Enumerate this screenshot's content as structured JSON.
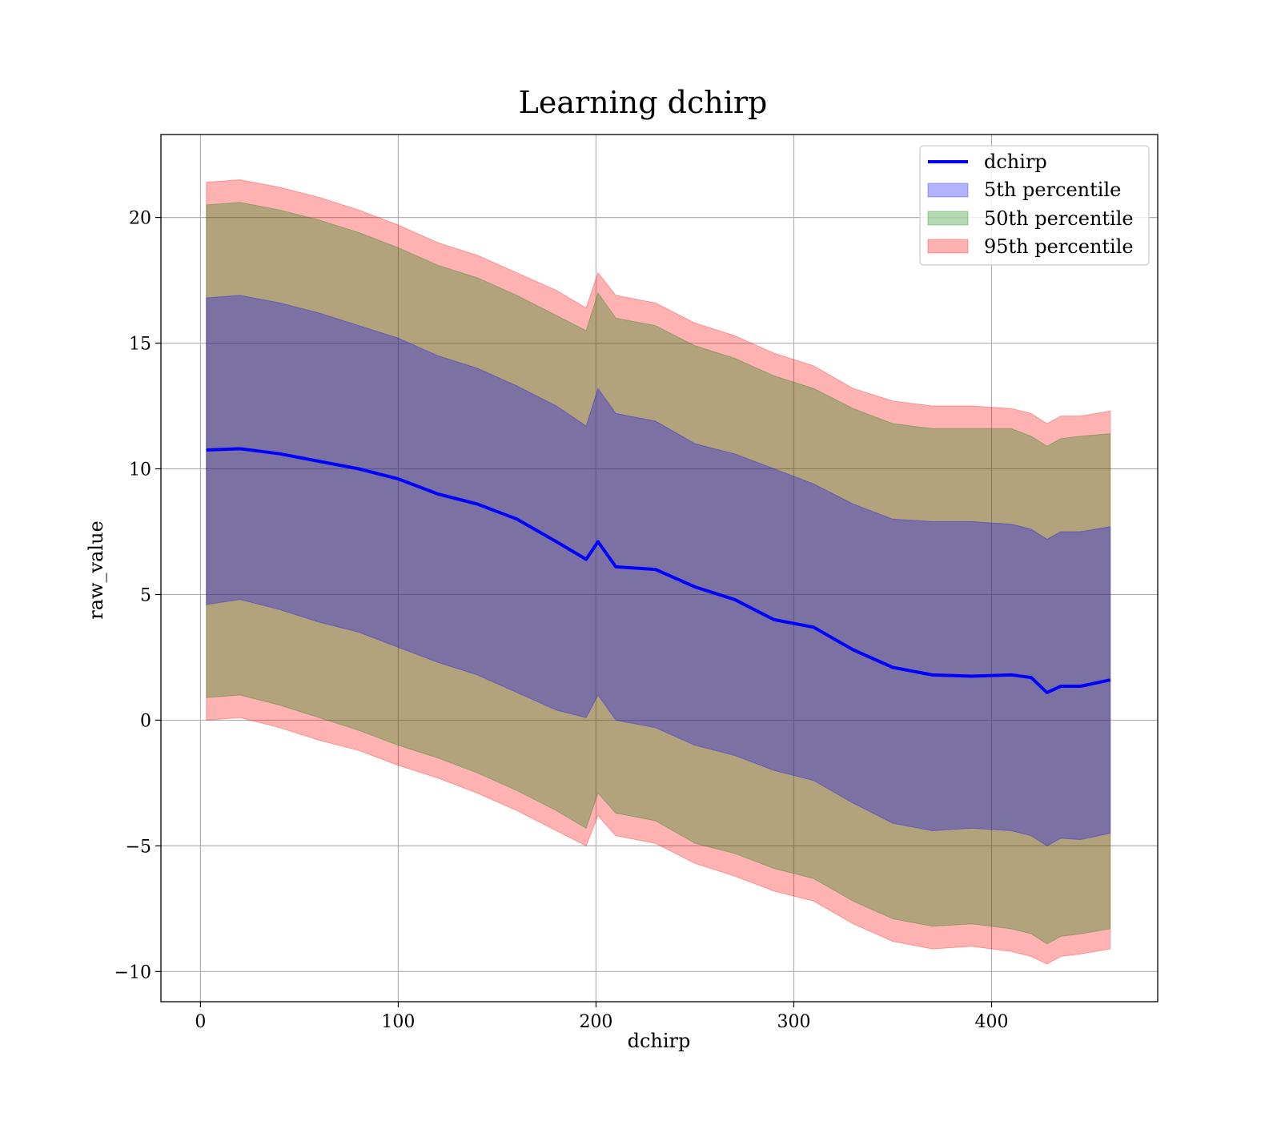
{
  "chart_data": {
    "type": "area",
    "title": "Learning dchirp",
    "xlabel": "dchirp",
    "ylabel": "raw_value",
    "xlim": [
      -20,
      484
    ],
    "ylim": [
      -11.2,
      23.3
    ],
    "x_ticks": [
      0,
      100,
      200,
      300,
      400
    ],
    "x_tick_labels": [
      "0",
      "100",
      "200",
      "300",
      "400"
    ],
    "y_ticks": [
      -10,
      -5,
      0,
      5,
      10,
      15,
      20
    ],
    "y_tick_labels": [
      "−10",
      "−5",
      "0",
      "5",
      "10",
      "15",
      "20"
    ],
    "grid": true,
    "legend_position": "top-right",
    "colors": {
      "line": "#0000ff",
      "p5": "#0000ff",
      "p50": "#008000",
      "p95": "#ff0000",
      "grid": "#b0b0b0"
    },
    "x": [
      3,
      20,
      40,
      60,
      80,
      100,
      120,
      140,
      160,
      180,
      195,
      201,
      210,
      230,
      250,
      270,
      290,
      310,
      330,
      350,
      370,
      390,
      410,
      420,
      428,
      435,
      445,
      460
    ],
    "series": [
      {
        "name": "dchirp",
        "kind": "line",
        "values": [
          10.75,
          10.8,
          10.6,
          10.3,
          10.0,
          9.6,
          9.0,
          8.6,
          8.0,
          7.1,
          6.4,
          7.1,
          6.1,
          6.0,
          5.3,
          4.8,
          4.0,
          3.7,
          2.8,
          2.1,
          1.8,
          1.75,
          1.8,
          1.7,
          1.1,
          1.35,
          1.35,
          1.6
        ]
      },
      {
        "name": "5th percentile",
        "kind": "band",
        "lower": [
          4.6,
          4.8,
          4.4,
          3.9,
          3.5,
          2.9,
          2.3,
          1.8,
          1.1,
          0.4,
          0.1,
          1.0,
          0.0,
          -0.3,
          -1.0,
          -1.4,
          -2.0,
          -2.4,
          -3.3,
          -4.1,
          -4.4,
          -4.3,
          -4.4,
          -4.6,
          -5.0,
          -4.7,
          -4.75,
          -4.5
        ],
        "upper": [
          16.8,
          16.9,
          16.6,
          16.2,
          15.7,
          15.2,
          14.5,
          14.0,
          13.3,
          12.5,
          11.7,
          13.2,
          12.2,
          11.9,
          11.0,
          10.6,
          10.0,
          9.4,
          8.6,
          8.0,
          7.9,
          7.9,
          7.8,
          7.6,
          7.2,
          7.5,
          7.5,
          7.7
        ]
      },
      {
        "name": "50th percentile",
        "kind": "band",
        "lower": [
          0.9,
          1.0,
          0.6,
          0.1,
          -0.4,
          -1.0,
          -1.5,
          -2.1,
          -2.8,
          -3.6,
          -4.3,
          -2.9,
          -3.7,
          -4.0,
          -4.9,
          -5.3,
          -5.9,
          -6.3,
          -7.2,
          -7.9,
          -8.2,
          -8.1,
          -8.3,
          -8.5,
          -8.9,
          -8.6,
          -8.5,
          -8.3
        ],
        "upper": [
          20.5,
          20.6,
          20.3,
          19.9,
          19.4,
          18.8,
          18.1,
          17.6,
          16.9,
          16.1,
          15.5,
          17.0,
          16.0,
          15.7,
          14.9,
          14.4,
          13.7,
          13.2,
          12.4,
          11.8,
          11.6,
          11.6,
          11.6,
          11.3,
          10.9,
          11.2,
          11.3,
          11.4
        ]
      },
      {
        "name": "95th percentile",
        "kind": "band",
        "lower": [
          0.0,
          0.1,
          -0.3,
          -0.8,
          -1.2,
          -1.8,
          -2.3,
          -2.9,
          -3.6,
          -4.4,
          -5.0,
          -3.8,
          -4.6,
          -4.9,
          -5.7,
          -6.2,
          -6.8,
          -7.2,
          -8.1,
          -8.8,
          -9.1,
          -9.0,
          -9.2,
          -9.4,
          -9.7,
          -9.4,
          -9.3,
          -9.1
        ],
        "upper": [
          21.4,
          21.5,
          21.2,
          20.8,
          20.3,
          19.7,
          19.0,
          18.5,
          17.8,
          17.1,
          16.4,
          17.8,
          16.9,
          16.6,
          15.8,
          15.3,
          14.6,
          14.1,
          13.2,
          12.7,
          12.5,
          12.5,
          12.4,
          12.2,
          11.8,
          12.1,
          12.1,
          12.3
        ]
      }
    ]
  }
}
